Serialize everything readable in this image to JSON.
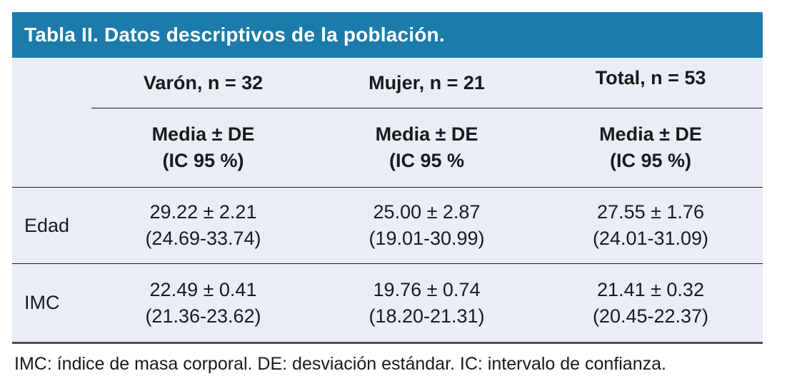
{
  "title": "Tabla II. Datos descriptivos de la población.",
  "colors": {
    "header_bg": "#1b7cab",
    "body_bg": "#e9edf6",
    "thin_rule": "#1a1a1a",
    "bottom_rule": "#4f4f4f",
    "title_text": "#ffffff",
    "body_text": "#1a1a1a"
  },
  "table": {
    "group_headers": {
      "varon": "Varón, n = 32",
      "mujer": "Mujer, n = 21",
      "total": "Total, n = 53"
    },
    "sub_headers": {
      "varon": {
        "line1": "Media ± DE",
        "line2": "(IC 95 %)"
      },
      "mujer": {
        "line1": "Media ± DE",
        "line2": "(IC 95 %"
      },
      "total": {
        "line1": "Media ± DE",
        "line2": "(IC 95 %)"
      }
    },
    "rows": {
      "edad": {
        "label": "Edad",
        "varon": {
          "mean": "29.22 ± 2.21",
          "ci": "(24.69-33.74)"
        },
        "mujer": {
          "mean": "25.00 ± 2.87",
          "ci": "(19.01-30.99)"
        },
        "total": {
          "mean": "27.55 ± 1.76",
          "ci": "(24.01-31.09)"
        }
      },
      "imc": {
        "label": "IMC",
        "varon": {
          "mean": "22.49 ± 0.41",
          "ci": "(21.36-23.62)"
        },
        "mujer": {
          "mean": "19.76 ± 0.74",
          "ci": "(18.20-21.31)"
        },
        "total": {
          "mean": "21.41 ± 0.32",
          "ci": "(20.45-22.37)"
        }
      }
    }
  },
  "footnote": "IMC: índice de masa corporal. DE: desviación estándar. IC: intervalo de confianza."
}
